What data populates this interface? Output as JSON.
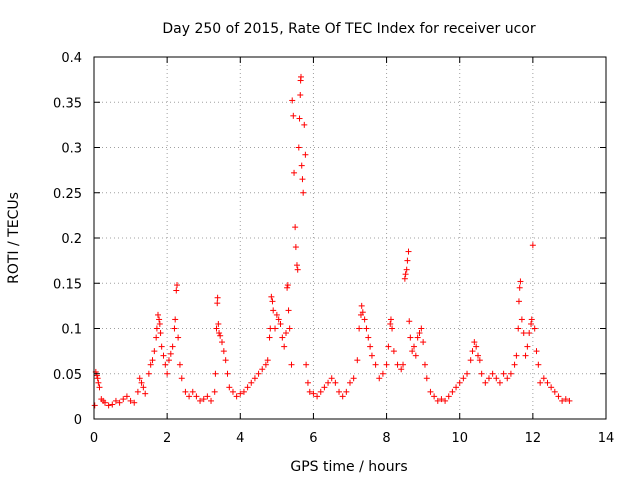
{
  "chart_data": {
    "type": "scatter",
    "title": "Day 250 of 2015, Rate Of TEC Index for receiver ucor",
    "xlabel": "GPS time / hours",
    "ylabel": "ROTI / TECUs",
    "xlim": [
      0,
      14
    ],
    "ylim": [
      0,
      0.4
    ],
    "x_ticks": [
      0,
      2,
      4,
      6,
      8,
      10,
      12,
      14
    ],
    "y_ticks": [
      0,
      0.05,
      0.1,
      0.15,
      0.2,
      0.25,
      0.3,
      0.35,
      0.4
    ],
    "x_tick_labels": [
      "0",
      "2",
      "4",
      "6",
      "8",
      "10",
      "12",
      "14"
    ],
    "y_tick_labels": [
      "0",
      "0.05",
      "0.1",
      "0.15",
      "0.2",
      "0.25",
      "0.3",
      "0.35",
      "0.4"
    ],
    "grid": true,
    "marker": "+",
    "marker_color": "#ff0000",
    "series": [
      {
        "name": "ROTI",
        "points": [
          [
            0.02,
            0.015
          ],
          [
            0.05,
            0.052
          ],
          [
            0.08,
            0.048
          ],
          [
            0.1,
            0.045
          ],
          [
            0.12,
            0.04
          ],
          [
            0.15,
            0.035
          ],
          [
            0.2,
            0.022
          ],
          [
            0.25,
            0.02
          ],
          [
            0.3,
            0.018
          ],
          [
            0.4,
            0.015
          ],
          [
            0.5,
            0.016
          ],
          [
            0.6,
            0.02
          ],
          [
            0.7,
            0.018
          ],
          [
            0.8,
            0.022
          ],
          [
            0.9,
            0.025
          ],
          [
            1.0,
            0.02
          ],
          [
            1.1,
            0.018
          ],
          [
            1.2,
            0.03
          ],
          [
            1.25,
            0.045
          ],
          [
            1.3,
            0.04
          ],
          [
            1.35,
            0.035
          ],
          [
            1.4,
            0.028
          ],
          [
            1.5,
            0.05
          ],
          [
            1.55,
            0.06
          ],
          [
            1.6,
            0.065
          ],
          [
            1.65,
            0.075
          ],
          [
            1.7,
            0.09
          ],
          [
            1.72,
            0.1
          ],
          [
            1.75,
            0.115
          ],
          [
            1.78,
            0.11
          ],
          [
            1.8,
            0.105
          ],
          [
            1.82,
            0.095
          ],
          [
            1.85,
            0.08
          ],
          [
            1.9,
            0.07
          ],
          [
            1.95,
            0.06
          ],
          [
            2.0,
            0.05
          ],
          [
            2.05,
            0.065
          ],
          [
            2.1,
            0.072
          ],
          [
            2.15,
            0.08
          ],
          [
            2.2,
            0.1
          ],
          [
            2.22,
            0.11
          ],
          [
            2.25,
            0.142
          ],
          [
            2.27,
            0.148
          ],
          [
            2.3,
            0.09
          ],
          [
            2.35,
            0.06
          ],
          [
            2.4,
            0.045
          ],
          [
            2.5,
            0.03
          ],
          [
            2.6,
            0.025
          ],
          [
            2.7,
            0.03
          ],
          [
            2.8,
            0.025
          ],
          [
            2.9,
            0.02
          ],
          [
            3.0,
            0.022
          ],
          [
            3.1,
            0.025
          ],
          [
            3.2,
            0.02
          ],
          [
            3.3,
            0.03
          ],
          [
            3.32,
            0.05
          ],
          [
            3.35,
            0.1
          ],
          [
            3.37,
            0.128
          ],
          [
            3.38,
            0.134
          ],
          [
            3.4,
            0.105
          ],
          [
            3.42,
            0.095
          ],
          [
            3.45,
            0.092
          ],
          [
            3.5,
            0.085
          ],
          [
            3.55,
            0.075
          ],
          [
            3.6,
            0.065
          ],
          [
            3.65,
            0.05
          ],
          [
            3.7,
            0.035
          ],
          [
            3.8,
            0.03
          ],
          [
            3.9,
            0.025
          ],
          [
            4.0,
            0.028
          ],
          [
            4.1,
            0.03
          ],
          [
            4.2,
            0.035
          ],
          [
            4.3,
            0.04
          ],
          [
            4.4,
            0.045
          ],
          [
            4.5,
            0.05
          ],
          [
            4.6,
            0.055
          ],
          [
            4.7,
            0.06
          ],
          [
            4.75,
            0.065
          ],
          [
            4.8,
            0.09
          ],
          [
            4.82,
            0.1
          ],
          [
            4.85,
            0.135
          ],
          [
            4.88,
            0.13
          ],
          [
            4.9,
            0.12
          ],
          [
            4.95,
            0.1
          ],
          [
            5.0,
            0.115
          ],
          [
            5.05,
            0.11
          ],
          [
            5.1,
            0.105
          ],
          [
            5.15,
            0.09
          ],
          [
            5.2,
            0.08
          ],
          [
            5.25,
            0.095
          ],
          [
            5.28,
            0.145
          ],
          [
            5.3,
            0.148
          ],
          [
            5.32,
            0.12
          ],
          [
            5.35,
            0.1
          ],
          [
            5.4,
            0.06
          ],
          [
            5.42,
            0.352
          ],
          [
            5.45,
            0.335
          ],
          [
            5.47,
            0.272
          ],
          [
            5.5,
            0.212
          ],
          [
            5.52,
            0.19
          ],
          [
            5.55,
            0.17
          ],
          [
            5.57,
            0.165
          ],
          [
            5.6,
            0.3
          ],
          [
            5.62,
            0.332
          ],
          [
            5.64,
            0.358
          ],
          [
            5.65,
            0.374
          ],
          [
            5.66,
            0.378
          ],
          [
            5.68,
            0.28
          ],
          [
            5.7,
            0.265
          ],
          [
            5.72,
            0.25
          ],
          [
            5.75,
            0.325
          ],
          [
            5.78,
            0.292
          ],
          [
            5.8,
            0.06
          ],
          [
            5.85,
            0.04
          ],
          [
            5.9,
            0.03
          ],
          [
            6.0,
            0.028
          ],
          [
            6.1,
            0.025
          ],
          [
            6.2,
            0.03
          ],
          [
            6.3,
            0.035
          ],
          [
            6.4,
            0.04
          ],
          [
            6.5,
            0.045
          ],
          [
            6.6,
            0.04
          ],
          [
            6.7,
            0.03
          ],
          [
            6.8,
            0.025
          ],
          [
            6.9,
            0.03
          ],
          [
            7.0,
            0.04
          ],
          [
            7.1,
            0.045
          ],
          [
            7.2,
            0.065
          ],
          [
            7.25,
            0.1
          ],
          [
            7.3,
            0.115
          ],
          [
            7.32,
            0.125
          ],
          [
            7.35,
            0.118
          ],
          [
            7.4,
            0.11
          ],
          [
            7.45,
            0.1
          ],
          [
            7.5,
            0.09
          ],
          [
            7.55,
            0.08
          ],
          [
            7.6,
            0.07
          ],
          [
            7.7,
            0.06
          ],
          [
            7.8,
            0.045
          ],
          [
            7.9,
            0.05
          ],
          [
            8.0,
            0.06
          ],
          [
            8.05,
            0.08
          ],
          [
            8.1,
            0.105
          ],
          [
            8.12,
            0.11
          ],
          [
            8.15,
            0.1
          ],
          [
            8.2,
            0.075
          ],
          [
            8.3,
            0.06
          ],
          [
            8.4,
            0.055
          ],
          [
            8.45,
            0.06
          ],
          [
            8.5,
            0.155
          ],
          [
            8.52,
            0.16
          ],
          [
            8.55,
            0.165
          ],
          [
            8.57,
            0.175
          ],
          [
            8.6,
            0.185
          ],
          [
            8.62,
            0.108
          ],
          [
            8.65,
            0.09
          ],
          [
            8.7,
            0.075
          ],
          [
            8.75,
            0.08
          ],
          [
            8.8,
            0.07
          ],
          [
            8.85,
            0.09
          ],
          [
            8.9,
            0.095
          ],
          [
            8.95,
            0.1
          ],
          [
            9.0,
            0.085
          ],
          [
            9.05,
            0.06
          ],
          [
            9.1,
            0.045
          ],
          [
            9.2,
            0.03
          ],
          [
            9.3,
            0.025
          ],
          [
            9.4,
            0.02
          ],
          [
            9.5,
            0.022
          ],
          [
            9.6,
            0.02
          ],
          [
            9.7,
            0.025
          ],
          [
            9.8,
            0.03
          ],
          [
            9.9,
            0.035
          ],
          [
            10.0,
            0.04
          ],
          [
            10.1,
            0.045
          ],
          [
            10.2,
            0.05
          ],
          [
            10.3,
            0.065
          ],
          [
            10.35,
            0.075
          ],
          [
            10.4,
            0.085
          ],
          [
            10.45,
            0.08
          ],
          [
            10.5,
            0.07
          ],
          [
            10.55,
            0.065
          ],
          [
            10.6,
            0.05
          ],
          [
            10.7,
            0.04
          ],
          [
            10.8,
            0.045
          ],
          [
            10.9,
            0.05
          ],
          [
            11.0,
            0.045
          ],
          [
            11.1,
            0.04
          ],
          [
            11.2,
            0.05
          ],
          [
            11.3,
            0.045
          ],
          [
            11.4,
            0.05
          ],
          [
            11.5,
            0.06
          ],
          [
            11.55,
            0.07
          ],
          [
            11.6,
            0.1
          ],
          [
            11.62,
            0.13
          ],
          [
            11.64,
            0.145
          ],
          [
            11.66,
            0.152
          ],
          [
            11.7,
            0.11
          ],
          [
            11.75,
            0.095
          ],
          [
            11.8,
            0.07
          ],
          [
            11.85,
            0.08
          ],
          [
            11.9,
            0.095
          ],
          [
            11.95,
            0.105
          ],
          [
            11.97,
            0.11
          ],
          [
            12.0,
            0.192
          ],
          [
            12.05,
            0.1
          ],
          [
            12.1,
            0.075
          ],
          [
            12.15,
            0.06
          ],
          [
            12.2,
            0.04
          ],
          [
            12.3,
            0.045
          ],
          [
            12.4,
            0.04
          ],
          [
            12.5,
            0.035
          ],
          [
            12.6,
            0.03
          ],
          [
            12.7,
            0.025
          ],
          [
            12.8,
            0.02
          ],
          [
            12.9,
            0.022
          ],
          [
            13.0,
            0.02
          ]
        ]
      }
    ]
  }
}
